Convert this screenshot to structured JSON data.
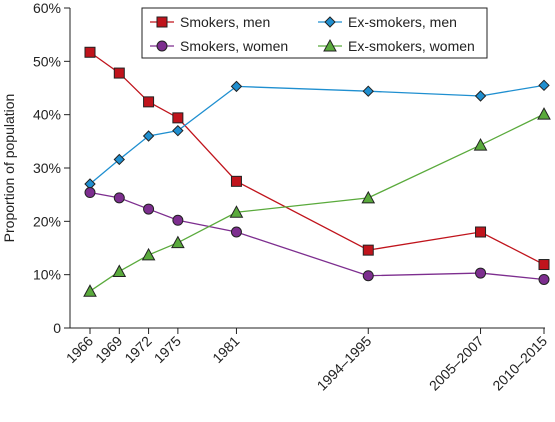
{
  "chart_data": {
    "type": "line",
    "title": "",
    "xlabel": "",
    "ylabel": "Proportion of population",
    "ylim": [
      0,
      60
    ],
    "yticks": [
      {
        "value": 0,
        "label": "0"
      },
      {
        "value": 10,
        "label": "10%"
      },
      {
        "value": 20,
        "label": "20%"
      },
      {
        "value": 30,
        "label": "30%"
      },
      {
        "value": 40,
        "label": "40%"
      },
      {
        "value": 50,
        "label": "50%"
      },
      {
        "value": 60,
        "label": "60%"
      }
    ],
    "categories": [
      "1966",
      "1969",
      "1972",
      "1975",
      "1981",
      "1994–1995",
      "2005–2007",
      "2010–2015"
    ],
    "x": [
      1966,
      1969,
      1972,
      1975,
      1981,
      1994.5,
      2006,
      2012.5
    ],
    "grid": false,
    "legend_position": "top",
    "series": [
      {
        "name": "Smokers, men",
        "marker": "square",
        "color": "#c0141c",
        "values": [
          51.7,
          47.8,
          42.4,
          39.4,
          27.5,
          14.6,
          18.0,
          11.9
        ]
      },
      {
        "name": "Ex-smokers, men",
        "marker": "diamond",
        "color": "#1f8fd0",
        "values": [
          27.0,
          31.6,
          36.0,
          37.0,
          45.3,
          44.4,
          43.5,
          45.5
        ]
      },
      {
        "name": "Smokers, women",
        "marker": "circle",
        "color": "#7d2e8f",
        "values": [
          25.4,
          24.4,
          22.3,
          20.2,
          18.0,
          9.8,
          10.3,
          9.1
        ]
      },
      {
        "name": "Ex-smokers, women",
        "marker": "triangle",
        "color": "#5aaa3c",
        "values": [
          6.9,
          10.6,
          13.7,
          16.0,
          21.7,
          24.4,
          34.3,
          40.1
        ]
      }
    ]
  }
}
